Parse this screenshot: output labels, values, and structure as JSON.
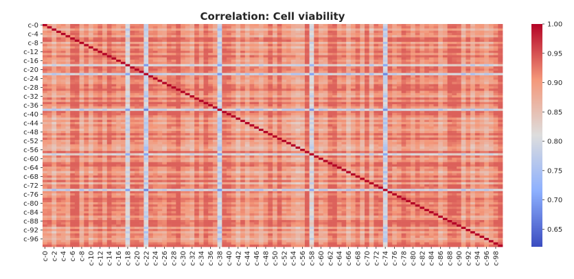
{
  "chart_data": {
    "type": "heatmap",
    "title": "Correlation: Cell viability",
    "colormap": "coolwarm",
    "variables_count": 100,
    "variable_prefix": "c-",
    "x_tick_labels": [
      "c-0",
      "c-2",
      "c-4",
      "c-6",
      "c-8",
      "c-10",
      "c-12",
      "c-14",
      "c-16",
      "c-18",
      "c-20",
      "c-22",
      "c-24",
      "c-26",
      "c-28",
      "c-30",
      "c-32",
      "c-34",
      "c-36",
      "c-38",
      "c-40",
      "c-42",
      "c-44",
      "c-46",
      "c-48",
      "c-50",
      "c-52",
      "c-54",
      "c-56",
      "c-58",
      "c-60",
      "c-62",
      "c-64",
      "c-66",
      "c-68",
      "c-70",
      "c-72",
      "c-74",
      "c-76",
      "c-78",
      "c-80",
      "c-82",
      "c-84",
      "c-86",
      "c-88",
      "c-90",
      "c-92",
      "c-94",
      "c-96",
      "c-98"
    ],
    "y_tick_labels": [
      "c-0",
      "c-4",
      "c-8",
      "c-12",
      "c-16",
      "c-20",
      "c-24",
      "c-28",
      "c-32",
      "c-36",
      "c-40",
      "c-44",
      "c-48",
      "c-52",
      "c-56",
      "c-60",
      "c-64",
      "c-68",
      "c-72",
      "c-76",
      "c-80",
      "c-84",
      "c-88",
      "c-92",
      "c-96"
    ],
    "colorbar": {
      "vmin": 0.62,
      "vmax": 1.0,
      "ticks": [
        "0.65",
        "0.70",
        "0.75",
        "0.80",
        "0.85",
        "0.90",
        "0.95",
        "1.00"
      ]
    },
    "diagonal_value": 1.0,
    "typical_value_range": [
      0.8,
      0.92
    ],
    "low_correlation_variables": [
      "c-22",
      "c-38",
      "c-74",
      "c-58",
      "c-18"
    ]
  }
}
